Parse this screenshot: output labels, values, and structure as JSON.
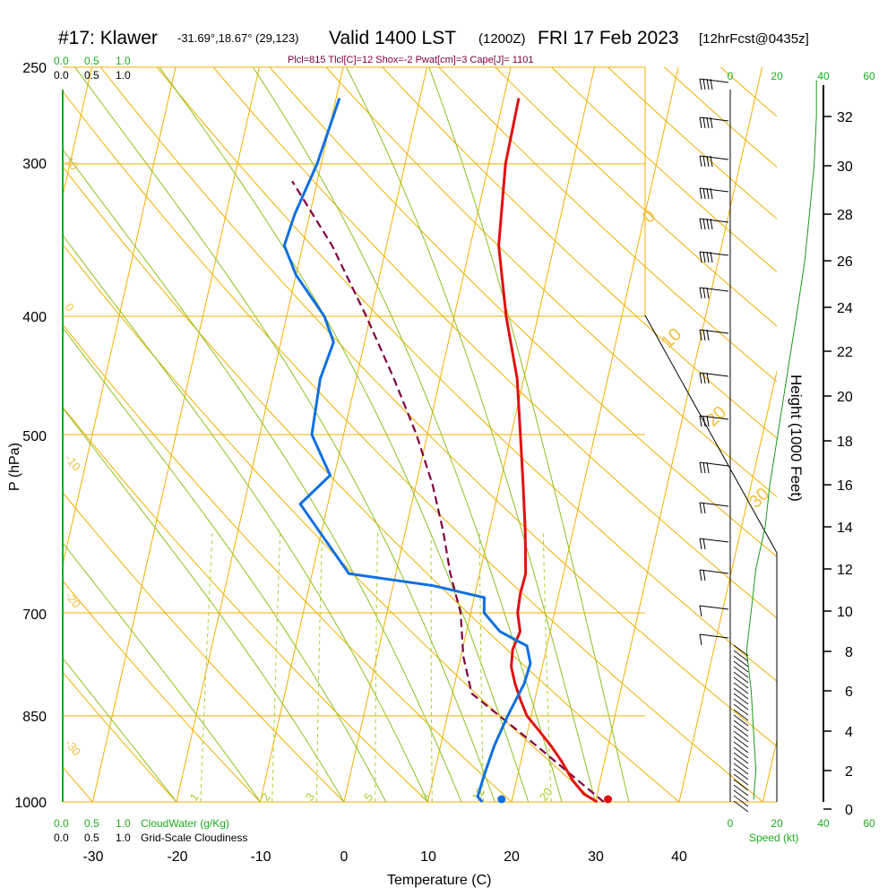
{
  "header": {
    "station": "#17: Klawer",
    "coords": "-31.69°,18.67° (29,123)",
    "valid": "Valid 1400 LST",
    "zulu": "(1200Z)",
    "date": "FRI 17 Feb 2023",
    "forecast": "[12hrFcst@0435z]",
    "params": "Plcl=815 Tlcl[C]=12 Shox=-2 Pwat[cm]=3 Cape[J]= 1101"
  },
  "labels": {
    "y_axis": "P (hPa)",
    "x_axis": "Temperature (C)",
    "height_axis": "Height (1000 Feet)",
    "cloud_water": "CloudWater (g/Kg)",
    "cloudiness": "Grid-Scale Cloudiness",
    "speed": "Speed (kt)"
  },
  "scales": {
    "cloud_ticks": [
      "0.0",
      "0.5",
      "1.0"
    ],
    "speed_ticks": [
      "0",
      "20",
      "40",
      "60"
    ]
  },
  "colors": {
    "isobar": "#f0b000",
    "isotherm": "#f0b000",
    "dry_adiabat": "#f0b000",
    "moist_adiabat": "#8cc020",
    "mixing_ratio": "#a8d030",
    "temperature": "#e01010",
    "dewpoint": "#1070e0",
    "parcel": "#800040",
    "wind_speed_trace": "#1a9a1a"
  },
  "chart_data": {
    "type": "skew-t",
    "ylabel": "P (hPa)",
    "xlabel": "Temperature (C)",
    "pressure_ticks": [
      "250",
      "300",
      "400",
      "500",
      "700",
      "850",
      "1000"
    ],
    "temperature_ticks": [
      "-30",
      "-20",
      "-10",
      "0",
      "10",
      "20",
      "30",
      "40"
    ],
    "height_ticks": [
      "0",
      "2",
      "4",
      "6",
      "8",
      "10",
      "12",
      "14",
      "16",
      "18",
      "20",
      "22",
      "24",
      "26",
      "28",
      "30",
      "32"
    ],
    "temperature_profile": [
      {
        "p": 1000,
        "t": 30.2
      },
      {
        "p": 985,
        "t": 28.4
      },
      {
        "p": 960,
        "t": 26.7
      },
      {
        "p": 925,
        "t": 24.8
      },
      {
        "p": 900,
        "t": 23.2
      },
      {
        "p": 875,
        "t": 21.4
      },
      {
        "p": 850,
        "t": 19.5
      },
      {
        "p": 825,
        "t": 18.3
      },
      {
        "p": 800,
        "t": 17.2
      },
      {
        "p": 775,
        "t": 16.3
      },
      {
        "p": 750,
        "t": 16.0
      },
      {
        "p": 725,
        "t": 16.4
      },
      {
        "p": 700,
        "t": 15.6
      },
      {
        "p": 675,
        "t": 15.4
      },
      {
        "p": 650,
        "t": 15.5
      },
      {
        "p": 600,
        "t": 14.3
      },
      {
        "p": 550,
        "t": 12.8
      },
      {
        "p": 500,
        "t": 11.1
      },
      {
        "p": 450,
        "t": 9.2
      },
      {
        "p": 400,
        "t": 6.2
      },
      {
        "p": 350,
        "t": 3.4
      },
      {
        "p": 300,
        "t": 2.0
      },
      {
        "p": 265,
        "t": 1.8
      }
    ],
    "dewpoint_profile": [
      {
        "p": 1000,
        "t": 16.5
      },
      {
        "p": 990,
        "t": 15.8
      },
      {
        "p": 950,
        "t": 16.0
      },
      {
        "p": 900,
        "t": 16.4
      },
      {
        "p": 850,
        "t": 17.2
      },
      {
        "p": 800,
        "t": 18.3
      },
      {
        "p": 770,
        "t": 18.5
      },
      {
        "p": 745,
        "t": 17.6
      },
      {
        "p": 725,
        "t": 14.0
      },
      {
        "p": 700,
        "t": 11.6
      },
      {
        "p": 680,
        "t": 11.2
      },
      {
        "p": 665,
        "t": 4.8
      },
      {
        "p": 650,
        "t": -5.6
      },
      {
        "p": 600,
        "t": -10.3
      },
      {
        "p": 570,
        "t": -13.3
      },
      {
        "p": 540,
        "t": -10.5
      },
      {
        "p": 500,
        "t": -13.8
      },
      {
        "p": 450,
        "t": -14.3
      },
      {
        "p": 420,
        "t": -13.7
      },
      {
        "p": 400,
        "t": -15.5
      },
      {
        "p": 370,
        "t": -20.0
      },
      {
        "p": 350,
        "t": -22.2
      },
      {
        "p": 330,
        "t": -21.8
      },
      {
        "p": 300,
        "t": -20.5
      },
      {
        "p": 265,
        "t": -19.6
      }
    ],
    "parcel_profile": [
      {
        "p": 1000,
        "t": 31.0
      },
      {
        "p": 900,
        "t": 21.5
      },
      {
        "p": 815,
        "t": 12.3
      },
      {
        "p": 760,
        "t": 10.3
      },
      {
        "p": 700,
        "t": 8.8
      },
      {
        "p": 650,
        "t": 6.5
      },
      {
        "p": 600,
        "t": 4.5
      },
      {
        "p": 550,
        "t": 2.0
      },
      {
        "p": 500,
        "t": -1.3
      },
      {
        "p": 450,
        "t": -5.5
      },
      {
        "p": 400,
        "t": -10.5
      },
      {
        "p": 350,
        "t": -16.5
      },
      {
        "p": 310,
        "t": -23.0
      }
    ],
    "surface_temperature": 31.5,
    "surface_dewpoint": 18.8,
    "mixing_ratio_labels": [
      "1",
      "2",
      "3",
      "5",
      "8",
      "12",
      "20"
    ],
    "dry_adiabat_labels": [
      "10",
      "0",
      "-10",
      "-20",
      "-30"
    ],
    "moist_adiabat_labels": [
      "0",
      "10",
      "20",
      "30"
    ],
    "wind_speed_trace_kt": [
      {
        "h": 0.5,
        "v": 10
      },
      {
        "h": 2,
        "v": 11
      },
      {
        "h": 4,
        "v": 10
      },
      {
        "h": 6,
        "v": 9
      },
      {
        "h": 8,
        "v": 7
      },
      {
        "h": 10,
        "v": 9
      },
      {
        "h": 12,
        "v": 11
      },
      {
        "h": 14,
        "v": 15
      },
      {
        "h": 16,
        "v": 17
      },
      {
        "h": 18,
        "v": 20
      },
      {
        "h": 20,
        "v": 23
      },
      {
        "h": 22,
        "v": 26
      },
      {
        "h": 24,
        "v": 29
      },
      {
        "h": 26,
        "v": 32
      },
      {
        "h": 28,
        "v": 34
      },
      {
        "h": 30,
        "v": 36
      },
      {
        "h": 32,
        "v": 37
      },
      {
        "h": 33.5,
        "v": 37
      }
    ]
  }
}
